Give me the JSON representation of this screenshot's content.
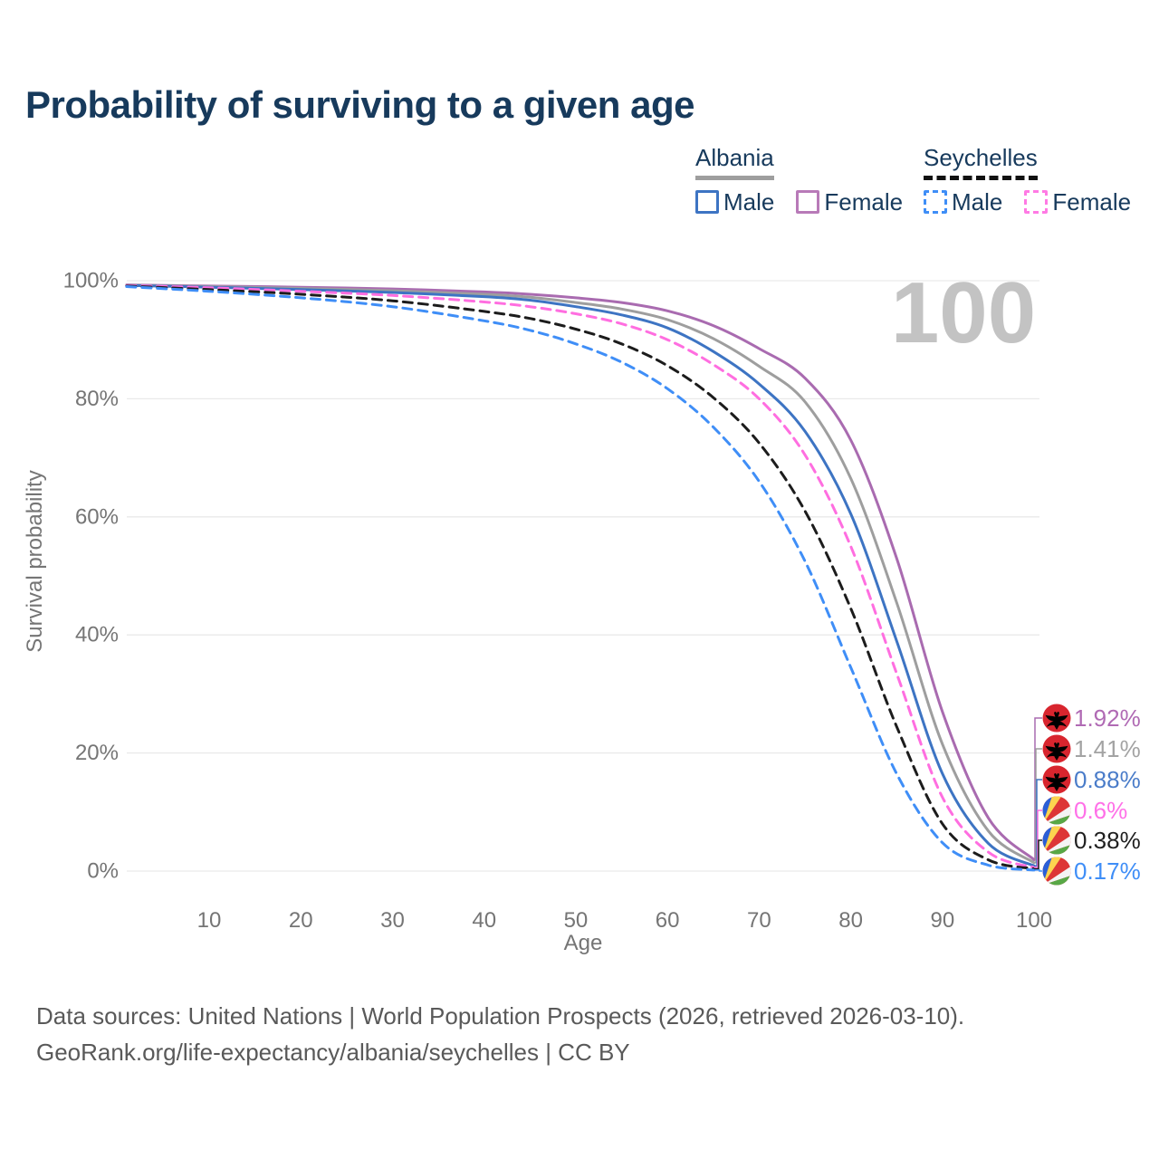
{
  "title": "Probability of surviving to a given age",
  "watermark": "100",
  "legend": {
    "groups": [
      {
        "title": "Albania",
        "underline_style": "solid",
        "items": [
          {
            "label": "Male",
            "box_color": "#3d74c3",
            "box_style": "solid"
          },
          {
            "label": "Female",
            "box_color": "#b87ab8",
            "box_style": "solid"
          }
        ]
      },
      {
        "title": "Seychelles",
        "underline_style": "dashed",
        "items": [
          {
            "label": "Male",
            "box_color": "#3f8ef7",
            "box_style": "dashed"
          },
          {
            "label": "Female",
            "box_color": "#ff7ae4",
            "box_style": "dashed"
          }
        ]
      }
    ]
  },
  "chart_data": {
    "type": "line",
    "title": "Probability of surviving to a given age",
    "xlabel": "Age",
    "ylabel": "Survival probability",
    "xlim": [
      1,
      100
    ],
    "ylim": [
      0,
      100
    ],
    "grid": "horizontal-only",
    "legend_position": "top-right",
    "x_ticks": [
      10,
      20,
      30,
      40,
      50,
      60,
      70,
      80,
      90,
      100
    ],
    "y_ticks": [
      {
        "value": 100,
        "label": "100%"
      },
      {
        "value": 80,
        "label": "80%"
      },
      {
        "value": 60,
        "label": "60%"
      },
      {
        "value": 40,
        "label": "40%"
      },
      {
        "value": 20,
        "label": "20%"
      },
      {
        "value": 0,
        "label": "0%"
      }
    ],
    "x": [
      1,
      10,
      20,
      30,
      40,
      45,
      50,
      55,
      60,
      65,
      70,
      75,
      80,
      85,
      90,
      95,
      100
    ],
    "series": [
      {
        "name": "Albania Female",
        "country": "Albania",
        "sex": "female",
        "flag": "albania",
        "color": "#a96bb0",
        "dash": "solid",
        "end_label": "1.92%",
        "end_label_color": "#b06ab4",
        "values": [
          99.3,
          99.1,
          98.9,
          98.6,
          98.1,
          97.7,
          97.1,
          96.3,
          94.9,
          92.4,
          88.5,
          83.5,
          73.0,
          53.0,
          27.0,
          9.0,
          1.92
        ]
      },
      {
        "name": "Albania both sexes",
        "country": "Albania",
        "sex": "both",
        "flag": "albania",
        "color": "#9e9e9e",
        "dash": "solid",
        "end_label": "1.41%",
        "end_label_color": "#a3a3a3",
        "values": [
          99.25,
          99.0,
          98.7,
          98.3,
          97.7,
          97.2,
          96.3,
          95.2,
          93.4,
          90.2,
          85.5,
          79.5,
          66.5,
          45.5,
          21.5,
          6.8,
          1.41
        ]
      },
      {
        "name": "Albania Male",
        "country": "Albania",
        "sex": "male",
        "flag": "albania",
        "color": "#3d74c3",
        "dash": "solid",
        "end_label": "0.88%",
        "end_label_color": "#4a7cc9",
        "values": [
          99.2,
          98.9,
          98.5,
          98.0,
          97.3,
          96.7,
          95.6,
          94.2,
          92.0,
          88.0,
          82.5,
          74.5,
          60.5,
          39.0,
          16.5,
          4.7,
          0.88
        ]
      },
      {
        "name": "Seychelles Female",
        "country": "Seychelles",
        "sex": "female",
        "flag": "seychelles",
        "color": "#ff6ee0",
        "dash": "dashed",
        "end_label": "0.6%",
        "end_label_color": "#ff70e8",
        "values": [
          99.2,
          98.8,
          98.2,
          97.5,
          96.4,
          95.6,
          94.4,
          92.7,
          90.0,
          85.8,
          80.0,
          70.5,
          55.0,
          33.5,
          12.5,
          3.2,
          0.6
        ]
      },
      {
        "name": "Seychelles both sexes",
        "country": "Seychelles",
        "sex": "both",
        "flag": "seychelles",
        "color": "#1c1c1c",
        "dash": "dashed",
        "end_label": "0.38%",
        "end_label_color": "#1f1f1f",
        "values": [
          99.1,
          98.5,
          97.7,
          96.6,
          94.8,
          93.6,
          91.8,
          89.3,
          85.6,
          80.2,
          72.5,
          61.0,
          44.5,
          24.5,
          8.0,
          1.9,
          0.38
        ]
      },
      {
        "name": "Seychelles Male",
        "country": "Seychelles",
        "sex": "male",
        "flag": "seychelles",
        "color": "#3f8ef7",
        "dash": "dashed",
        "end_label": "0.17%",
        "end_label_color": "#3f8ef7",
        "values": [
          99.0,
          98.2,
          97.1,
          95.6,
          93.2,
          91.6,
          89.3,
          86.2,
          81.7,
          75.2,
          66.0,
          52.5,
          34.5,
          16.5,
          4.8,
          1.0,
          0.17
        ]
      }
    ]
  },
  "footer": {
    "line1": "Data sources: United Nations | World Population Prospects (2026, retrieved 2026-03-10).",
    "line2": "GeoRank.org/life-expectancy/albania/seychelles | CC BY"
  }
}
